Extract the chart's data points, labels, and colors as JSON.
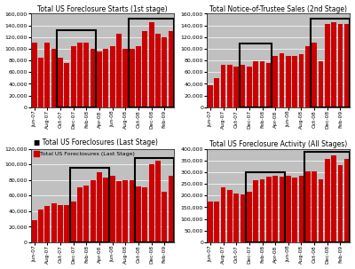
{
  "chart1_title": "Total US Foreclosure Starts (1st stage)",
  "chart1_values": [
    110000,
    85000,
    110000,
    100000,
    85000,
    75000,
    105000,
    110000,
    110000,
    100000,
    95000,
    100000,
    105000,
    125000,
    100000,
    100000,
    105000,
    130000,
    145000,
    125000,
    120000,
    130000
  ],
  "chart1_ylim": [
    0,
    160000
  ],
  "chart1_yticks": [
    0,
    20000,
    40000,
    60000,
    80000,
    100000,
    120000,
    140000,
    160000
  ],
  "chart2_title": "Total Notice-of-Trustee Sales (2nd Stage)",
  "chart2_values": [
    38000,
    50000,
    73000,
    72000,
    70000,
    73000,
    70000,
    78000,
    78000,
    75000,
    88000,
    92000,
    88000,
    88000,
    90000,
    105000,
    110000,
    78000,
    142000,
    145000,
    142000,
    143000
  ],
  "chart2_ylim": [
    0,
    160000
  ],
  "chart2_yticks": [
    0,
    20000,
    40000,
    60000,
    80000,
    100000,
    120000,
    140000,
    160000
  ],
  "chart3_title": "Total US Foreclosures (Last Stage)",
  "chart3_values": [
    28000,
    42000,
    47000,
    50000,
    48000,
    48000,
    52000,
    70000,
    73000,
    80000,
    90000,
    83000,
    85000,
    78000,
    80000,
    80000,
    72000,
    70000,
    100000,
    105000,
    65000,
    85000
  ],
  "chart3_ylim": [
    0,
    120000
  ],
  "chart3_yticks": [
    0,
    20000,
    40000,
    60000,
    80000,
    100000,
    120000
  ],
  "chart4_title": "Total US Foreclosure Activity (All Stages)",
  "chart4_values": [
    175000,
    175000,
    235000,
    225000,
    210000,
    205000,
    215000,
    265000,
    270000,
    280000,
    285000,
    280000,
    285000,
    275000,
    285000,
    305000,
    305000,
    270000,
    355000,
    370000,
    330000,
    355000
  ],
  "chart4_ylim": [
    0,
    400000
  ],
  "chart4_yticks": [
    0,
    50000,
    100000,
    150000,
    200000,
    250000,
    300000,
    350000,
    400000
  ],
  "bar_color": "#CC0000",
  "bg_color": "#C0C0C0",
  "fig_bg": "#FFFFFF",
  "n_bars": 22,
  "xlabels": [
    "Jun-07",
    "Aug-07",
    "Oct-07",
    "Dec-07",
    "Feb-08",
    "Apr-08",
    "Jun-08",
    "Aug-08",
    "Oct-08",
    "Dec-08",
    "Feb-09",
    "Apr-09",
    "Jun-09"
  ],
  "box_params": [
    [
      [
        3.5,
        9.5,
        0.82
      ],
      [
        14.5,
        21.5,
        0.95
      ]
    ],
    [
      [
        4.5,
        9.5,
        0.68
      ],
      [
        15.5,
        21.5,
        0.95
      ]
    ],
    [
      [
        5.5,
        11.5,
        0.8
      ],
      [
        15.5,
        21.5,
        0.9
      ]
    ],
    [
      [
        5.5,
        11.5,
        0.75
      ],
      [
        14.5,
        21.5,
        0.97
      ]
    ]
  ],
  "chart3_legend": "Total US Foreclosures (Last Stage)"
}
